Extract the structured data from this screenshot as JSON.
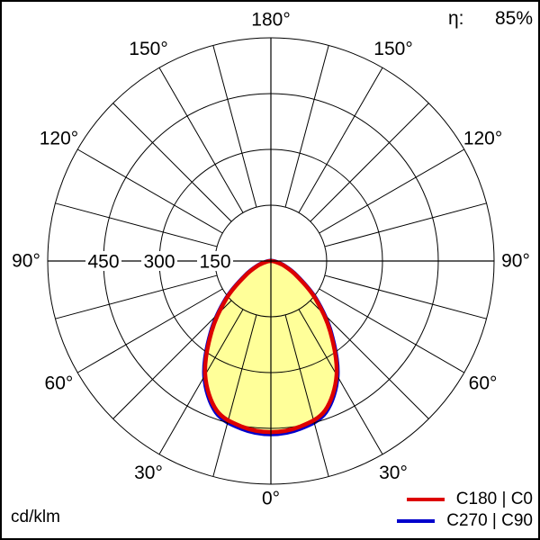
{
  "header": {
    "efficiency_label": "η:",
    "efficiency_value": "85%"
  },
  "footer": {
    "unit_label": "cd/klm"
  },
  "legend": {
    "items": [
      {
        "label": "C180 | C0",
        "color": "#dd0000"
      },
      {
        "label": "C270 | C90",
        "color": "#0000cc"
      }
    ]
  },
  "chart_data": {
    "type": "polar",
    "subtype": "photometric-intensity-distribution",
    "unit": "cd/klm",
    "efficiency_percent": 85,
    "rmax": 600,
    "ring_values": [
      150,
      300,
      450,
      600
    ],
    "ring_axis_labels": [
      "150",
      "300",
      "450"
    ],
    "spoke_step_deg": 15,
    "angle_label_step_deg": 30,
    "angle_labels": [
      "0°",
      "30°",
      "60°",
      "90°",
      "120°",
      "150°",
      "180°"
    ],
    "grid_color": "#000000",
    "fill_color": "#ffff99",
    "series": [
      {
        "name": "C180 | C0",
        "color": "#dd0000",
        "symmetric": true,
        "gamma_deg": [
          0,
          10,
          20,
          30,
          40,
          50,
          60,
          70,
          80,
          90
        ],
        "values": [
          460,
          452,
          427,
          353,
          248,
          155,
          80,
          38,
          12,
          0
        ]
      },
      {
        "name": "C270 | C90",
        "color": "#0000cc",
        "symmetric": true,
        "gamma_deg": [
          0,
          10,
          20,
          30,
          40,
          50,
          60,
          70,
          80,
          90
        ],
        "values": [
          465,
          457,
          432,
          357,
          251,
          157,
          81,
          38,
          12,
          0
        ]
      }
    ]
  }
}
